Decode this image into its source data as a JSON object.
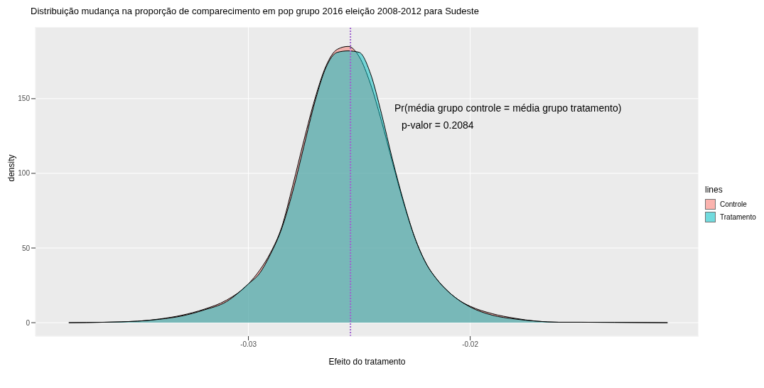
{
  "chart_data": {
    "type": "area",
    "title": "Distribuição mudança na proporção de comparecimento em pop grupo 2016 eleição 2008-2012 para Sudeste",
    "xlabel": "Efeito do tratamento",
    "ylabel": "density",
    "legend_title": "lines",
    "x": [
      -0.0381,
      -0.0365,
      -0.035,
      -0.034,
      -0.033,
      -0.032,
      -0.031,
      -0.03,
      -0.0295,
      -0.029,
      -0.0285,
      -0.028,
      -0.0275,
      -0.027,
      -0.0265,
      -0.026,
      -0.0255,
      -0.025,
      -0.0245,
      -0.024,
      -0.0235,
      -0.023,
      -0.0225,
      -0.022,
      -0.0215,
      -0.021,
      -0.0205,
      -0.02,
      -0.019,
      -0.018,
      -0.017,
      -0.016,
      -0.015,
      -0.0135,
      -0.0111
    ],
    "series": [
      {
        "name": "Controle",
        "color": "#f8766d",
        "values": [
          0,
          0.3,
          1,
          2.5,
          5,
          9,
          15,
          26,
          35,
          47,
          64,
          92,
          122,
          150,
          172,
          183,
          185,
          178,
          160,
          135,
          107,
          80,
          57,
          40,
          29,
          21,
          15,
          11,
          6,
          3,
          1,
          0.3,
          0.3,
          0.2,
          0
        ]
      },
      {
        "name": "Tratamento",
        "color": "#00bfc4",
        "values": [
          0,
          0.3,
          1,
          2.3,
          4.5,
          8.5,
          14,
          26,
          33,
          46,
          63,
          88,
          118,
          148,
          171,
          181,
          182,
          181,
          167,
          140,
          109,
          81,
          57,
          40,
          29,
          21,
          15,
          10.5,
          5,
          2.5,
          1,
          0.3,
          0.3,
          0.2,
          0
        ]
      }
    ],
    "xlim": [
      -0.0396,
      -0.0097
    ],
    "ylim": [
      -9,
      198
    ],
    "xticks": [
      -0.03,
      -0.02
    ],
    "yticks": [
      0,
      50,
      100,
      150
    ],
    "ref_lines": [
      {
        "axis": "x",
        "value": -0.0254,
        "color": "#a05fd0",
        "line_style": "dotted"
      }
    ],
    "annotations": [
      "Pr(média grupo controle = média grupo tratamento)",
      "p-valor = 0.2084"
    ],
    "grid": true,
    "legend": "right"
  }
}
